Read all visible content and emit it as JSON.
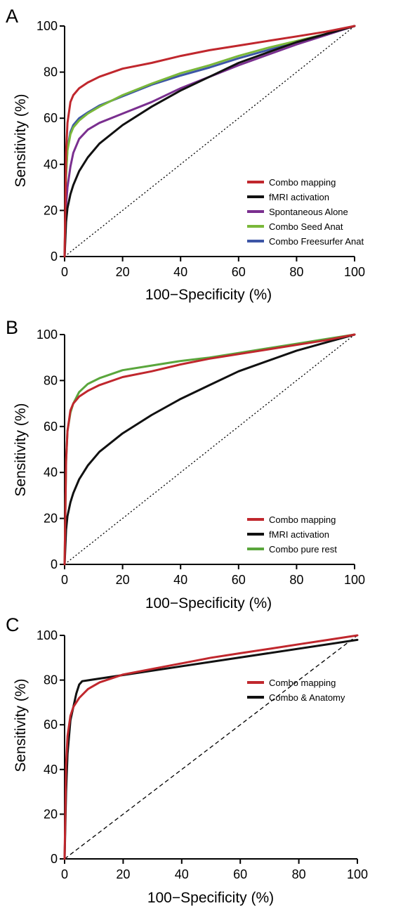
{
  "chart_data": [
    {
      "panel": "A",
      "type": "line",
      "xlabel": "100−Specificity (%)",
      "ylabel": "Sensitivity (%)",
      "xlim": [
        0,
        100
      ],
      "ylim": [
        0,
        100
      ],
      "xticks": [
        "0",
        "20",
        "40",
        "60",
        "80",
        "100"
      ],
      "yticks": [
        "0",
        "20",
        "40",
        "60",
        "80",
        "100"
      ],
      "legend_position": "bottom-right",
      "reference_line": "dotted",
      "series": [
        {
          "name": "Combo mapping",
          "color": "#c0272d",
          "x": [
            0,
            0.5,
            1,
            2,
            3,
            5,
            8,
            12,
            20,
            30,
            40,
            50,
            60,
            70,
            80,
            90,
            100
          ],
          "y": [
            0,
            45,
            58,
            67,
            70,
            73,
            75.5,
            78,
            81.5,
            84,
            87,
            89.5,
            91.5,
            93.5,
            95.5,
            97.5,
            100
          ]
        },
        {
          "name": "fMRI activation",
          "color": "#111111",
          "x": [
            0,
            0.5,
            1,
            2,
            3,
            5,
            8,
            12,
            20,
            30,
            40,
            50,
            60,
            70,
            80,
            90,
            100
          ],
          "y": [
            0,
            15,
            21,
            27,
            31,
            37,
            43,
            49,
            57,
            65,
            72,
            78,
            84,
            88.5,
            93,
            96.5,
            100
          ]
        },
        {
          "name": "Spontaneous Alone",
          "color": "#7a2f8f",
          "x": [
            0,
            0.5,
            1,
            2,
            3,
            5,
            8,
            12,
            20,
            30,
            40,
            50,
            60,
            70,
            80,
            90,
            100
          ],
          "y": [
            0,
            22,
            30,
            39,
            45,
            51,
            55,
            58,
            62,
            67,
            73,
            78,
            83,
            87.5,
            92,
            96,
            100
          ]
        },
        {
          "name": "Combo Seed Anat",
          "color": "#7ab83a",
          "x": [
            0,
            0.5,
            1,
            2,
            3,
            5,
            8,
            12,
            20,
            30,
            40,
            50,
            60,
            70,
            80,
            90,
            100
          ],
          "y": [
            0,
            35,
            46,
            53,
            56,
            59,
            62,
            65,
            70,
            75,
            79.5,
            83,
            87,
            90.5,
            93.5,
            96.5,
            100
          ]
        },
        {
          "name": "Combo Freesurfer Anat",
          "color": "#3d56a6",
          "x": [
            0,
            0.5,
            1,
            2,
            3,
            5,
            8,
            12,
            20,
            30,
            40,
            50,
            60,
            70,
            80,
            90,
            100
          ],
          "y": [
            0,
            36,
            47,
            54,
            57,
            60,
            62.5,
            65.5,
            69.5,
            74.5,
            78.5,
            82,
            86,
            89.5,
            93,
            96.5,
            100
          ]
        }
      ]
    },
    {
      "panel": "B",
      "type": "line",
      "xlabel": "100−Specificity (%)",
      "ylabel": "Sensitivity (%)",
      "xlim": [
        0,
        100
      ],
      "ylim": [
        0,
        100
      ],
      "xticks": [
        "0",
        "20",
        "40",
        "60",
        "80",
        "100"
      ],
      "yticks": [
        "0",
        "20",
        "40",
        "60",
        "80",
        "100"
      ],
      "legend_position": "bottom-right",
      "reference_line": "dotted",
      "series": [
        {
          "name": "Combo mapping",
          "color": "#c0272d",
          "x": [
            0,
            0.5,
            1,
            2,
            3,
            5,
            8,
            12,
            20,
            30,
            40,
            50,
            60,
            70,
            80,
            90,
            100
          ],
          "y": [
            0,
            45,
            58,
            67,
            70,
            73,
            75.5,
            78,
            81.5,
            84,
            87,
            89.5,
            91.5,
            93.5,
            95.5,
            97.5,
            100
          ]
        },
        {
          "name": "fMRI activation",
          "color": "#111111",
          "x": [
            0,
            0.5,
            1,
            2,
            3,
            5,
            8,
            12,
            20,
            30,
            40,
            50,
            60,
            70,
            80,
            90,
            100
          ],
          "y": [
            0,
            15,
            21,
            27,
            31,
            37,
            43,
            49,
            57,
            65,
            72,
            78,
            84,
            88.5,
            93,
            96.5,
            100
          ]
        },
        {
          "name": "Combo pure rest",
          "color": "#5aa63c",
          "x": [
            0,
            0.5,
            1,
            2,
            3,
            5,
            8,
            12,
            20,
            30,
            40,
            50,
            60,
            70,
            80,
            90,
            100
          ],
          "y": [
            0,
            45,
            58,
            66,
            70,
            75,
            78.5,
            81,
            84.5,
            86.5,
            88.5,
            90,
            92,
            94,
            96,
            98,
            100
          ]
        }
      ]
    },
    {
      "panel": "C",
      "type": "line",
      "xlabel": "100−Specificity (%)",
      "ylabel": "Sensitivity (%)",
      "xlim": [
        0,
        100
      ],
      "ylim": [
        0,
        100
      ],
      "xticks": [
        "0",
        "20",
        "40",
        "60",
        "80",
        "100"
      ],
      "yticks": [
        "0",
        "20",
        "40",
        "60",
        "80",
        "100"
      ],
      "legend_position": "bottom-right",
      "reference_line": "dashed",
      "series": [
        {
          "name": "Combo mapping",
          "color": "#c0272d",
          "x": [
            0,
            0.5,
            1,
            2,
            3,
            5,
            8,
            12,
            20,
            30,
            40,
            50,
            60,
            70,
            80,
            90,
            100
          ],
          "y": [
            0,
            42,
            55,
            64,
            68,
            72,
            76,
            79,
            82.5,
            85,
            87.5,
            90,
            92,
            94,
            96,
            98,
            100
          ]
        },
        {
          "name": "Combo & Anatomy",
          "color": "#111111",
          "x": [
            0,
            0.5,
            1,
            2,
            3,
            4,
            5,
            6,
            100
          ],
          "y": [
            0,
            30,
            47,
            62,
            68,
            74,
            78,
            79.5,
            98
          ]
        }
      ]
    }
  ]
}
